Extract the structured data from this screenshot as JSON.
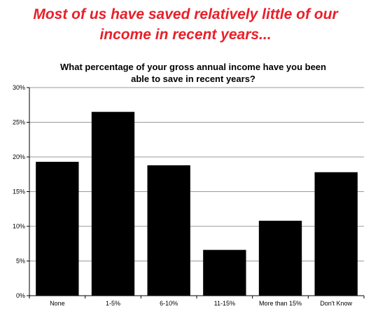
{
  "headline": {
    "line1": "Most of us have saved relatively little of our",
    "line2": "income in recent years...",
    "color": "#e8202a"
  },
  "chart_data": {
    "type": "bar",
    "title_lines": [
      "What percentage of your gross annual income have you been",
      "able to save in recent years?"
    ],
    "categories": [
      "None",
      "1-5%",
      "6-10%",
      "11-15%",
      "More than 15%",
      "Don't Know"
    ],
    "values": [
      19.3,
      26.5,
      18.8,
      6.6,
      10.8,
      17.8
    ],
    "ylim": [
      0,
      30
    ],
    "yticks": [
      0,
      5,
      10,
      15,
      20,
      25,
      30
    ],
    "ytick_labels": [
      "0%",
      "5%",
      "10%",
      "15%",
      "20%",
      "25%",
      "30%"
    ],
    "grid": true,
    "bar_color": "#000000",
    "grid_color": "#9a9a9a",
    "legend": "none"
  }
}
